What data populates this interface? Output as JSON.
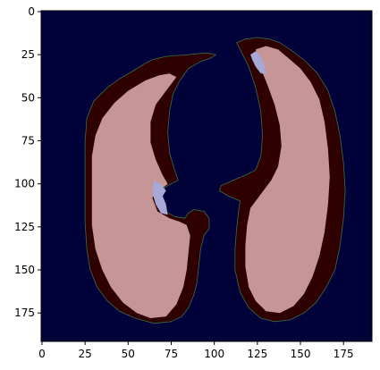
{
  "chart_data": {
    "type": "heatmap",
    "title": "",
    "xlabel": "",
    "ylabel": "",
    "xlim": [
      -0.5,
      191.5
    ],
    "ylim": [
      191.5,
      -0.5
    ],
    "x_ticks": [
      0,
      25,
      50,
      75,
      100,
      125,
      150,
      175
    ],
    "y_ticks": [
      0,
      25,
      50,
      75,
      100,
      125,
      150,
      175
    ],
    "grid": false,
    "legend": "none",
    "colors": {
      "background": "#02023a",
      "outer_region": "#2e0000",
      "inner_region": "#c69696",
      "highlight_region": "#a7a8d6",
      "edge_outline": "#3c6e46"
    },
    "regions": {
      "left_lung_outer": [
        [
          52,
          35
        ],
        [
          60,
          30
        ],
        [
          64,
          28
        ],
        [
          72,
          26
        ],
        [
          85,
          25
        ],
        [
          95,
          24
        ],
        [
          101,
          25
        ],
        [
          98,
          27
        ],
        [
          92,
          29
        ],
        [
          85,
          33
        ],
        [
          80,
          40
        ],
        [
          76,
          48
        ],
        [
          74,
          58
        ],
        [
          73,
          70
        ],
        [
          74,
          82
        ],
        [
          77,
          92
        ],
        [
          79,
          98
        ],
        [
          73,
          101
        ],
        [
          68,
          104
        ],
        [
          67,
          107
        ],
        [
          70,
          115
        ],
        [
          77,
          119
        ],
        [
          83,
          120
        ],
        [
          85,
          117
        ],
        [
          88,
          115
        ],
        [
          94,
          116
        ],
        [
          97,
          120
        ],
        [
          97,
          126
        ],
        [
          94,
          130
        ],
        [
          92,
          138
        ],
        [
          91,
          148
        ],
        [
          90,
          157
        ],
        [
          88,
          165
        ],
        [
          85,
          172
        ],
        [
          81,
          177
        ],
        [
          75,
          180
        ],
        [
          65,
          181
        ],
        [
          54,
          178
        ],
        [
          45,
          174
        ],
        [
          38,
          168
        ],
        [
          32,
          160
        ],
        [
          28,
          150
        ],
        [
          26,
          138
        ],
        [
          25,
          122
        ],
        [
          25,
          104
        ],
        [
          25,
          88
        ],
        [
          25,
          76
        ],
        [
          26,
          62
        ],
        [
          30,
          52
        ],
        [
          38,
          44
        ],
        [
          45,
          39
        ]
      ],
      "left_lung_inner": [
        [
          60,
          40
        ],
        [
          68,
          37
        ],
        [
          74,
          36
        ],
        [
          78,
          38
        ],
        [
          72,
          46
        ],
        [
          66,
          54
        ],
        [
          63,
          64
        ],
        [
          63,
          76
        ],
        [
          66,
          86
        ],
        [
          70,
          95
        ],
        [
          73,
          100
        ],
        [
          68,
          104
        ],
        [
          64,
          108
        ],
        [
          67,
          116
        ],
        [
          74,
          120
        ],
        [
          80,
          122
        ],
        [
          84,
          124
        ],
        [
          86,
          130
        ],
        [
          85,
          140
        ],
        [
          84,
          150
        ],
        [
          82,
          160
        ],
        [
          78,
          170
        ],
        [
          72,
          177
        ],
        [
          63,
          178
        ],
        [
          55,
          175
        ],
        [
          47,
          169
        ],
        [
          40,
          160
        ],
        [
          35,
          150
        ],
        [
          31,
          138
        ],
        [
          29,
          124
        ],
        [
          29,
          110
        ],
        [
          29,
          96
        ],
        [
          29,
          84
        ],
        [
          31,
          72
        ],
        [
          35,
          62
        ],
        [
          42,
          53
        ],
        [
          50,
          46
        ]
      ],
      "left_lung_highlight": [
        [
          65,
          98
        ],
        [
          69,
          100
        ],
        [
          72,
          104
        ],
        [
          70,
          107
        ],
        [
          72,
          112
        ],
        [
          73,
          118
        ],
        [
          69,
          117
        ],
        [
          66,
          112
        ],
        [
          64,
          105
        ]
      ],
      "right_lung_outer": [
        [
          113,
          18
        ],
        [
          118,
          16
        ],
        [
          125,
          15
        ],
        [
          132,
          16
        ],
        [
          138,
          18
        ],
        [
          144,
          22
        ],
        [
          152,
          28
        ],
        [
          160,
          36
        ],
        [
          166,
          46
        ],
        [
          170,
          58
        ],
        [
          173,
          72
        ],
        [
          175,
          88
        ],
        [
          176,
          104
        ],
        [
          175,
          120
        ],
        [
          173,
          136
        ],
        [
          170,
          150
        ],
        [
          165,
          160
        ],
        [
          159,
          169
        ],
        [
          152,
          175
        ],
        [
          144,
          179
        ],
        [
          135,
          180
        ],
        [
          127,
          178
        ],
        [
          120,
          172
        ],
        [
          115,
          163
        ],
        [
          112,
          150
        ],
        [
          112,
          138
        ],
        [
          113,
          126
        ],
        [
          114,
          116
        ],
        [
          115,
          110
        ],
        [
          108,
          107
        ],
        [
          103,
          104
        ],
        [
          104,
          101
        ],
        [
          111,
          98
        ],
        [
          118,
          95
        ],
        [
          124,
          92
        ],
        [
          127,
          84
        ],
        [
          128,
          72
        ],
        [
          127,
          58
        ],
        [
          124,
          44
        ],
        [
          120,
          32
        ],
        [
          116,
          24
        ]
      ],
      "right_lung_inner": [
        [
          124,
          22
        ],
        [
          130,
          20
        ],
        [
          137,
          22
        ],
        [
          143,
          27
        ],
        [
          150,
          33
        ],
        [
          156,
          41
        ],
        [
          161,
          51
        ],
        [
          164,
          64
        ],
        [
          166,
          80
        ],
        [
          167,
          96
        ],
        [
          166,
          112
        ],
        [
          164,
          128
        ],
        [
          161,
          142
        ],
        [
          157,
          154
        ],
        [
          152,
          164
        ],
        [
          146,
          171
        ],
        [
          138,
          175
        ],
        [
          130,
          174
        ],
        [
          124,
          168
        ],
        [
          120,
          160
        ],
        [
          118,
          148
        ],
        [
          118,
          136
        ],
        [
          119,
          124
        ],
        [
          121,
          114
        ],
        [
          127,
          106
        ],
        [
          133,
          98
        ],
        [
          137,
          90
        ],
        [
          139,
          78
        ],
        [
          138,
          66
        ],
        [
          135,
          54
        ],
        [
          131,
          43
        ],
        [
          127,
          33
        ]
      ],
      "right_lung_highlight": [
        [
          121,
          25
        ],
        [
          124,
          23
        ],
        [
          127,
          26
        ],
        [
          129,
          31
        ],
        [
          130,
          36
        ],
        [
          127,
          36
        ],
        [
          124,
          32
        ],
        [
          122,
          28
        ]
      ]
    }
  }
}
